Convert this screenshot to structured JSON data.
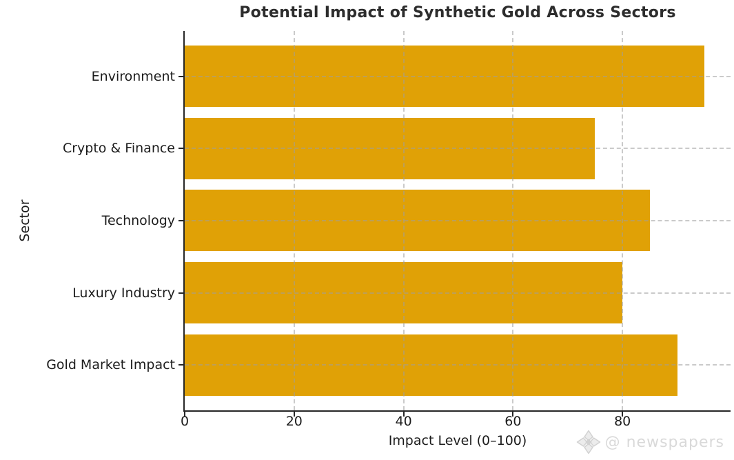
{
  "chart_data": {
    "type": "bar",
    "orientation": "horizontal",
    "title": "Potential Impact of Synthetic Gold Across Sectors",
    "categories": [
      "Environment",
      "Crypto & Finance",
      "Technology",
      "Luxury Industry",
      "Gold Market Impact"
    ],
    "values": [
      95,
      75,
      85,
      80,
      90
    ],
    "xlabel": "Impact Level (0–100)",
    "ylabel": "Sector",
    "xlim": [
      0,
      99.75
    ],
    "xticks": [
      0,
      20,
      40,
      60,
      80
    ],
    "bar_color": "#E0A106",
    "axis_color": "#262626",
    "grid": {
      "style": "dashed",
      "axes": "both",
      "color": "#cccccc",
      "over_bars": true
    },
    "legend": "none"
  },
  "watermark": {
    "icon": "compass-diamond-logo",
    "text": "@ newspapers",
    "color": "#d9d9d9"
  }
}
